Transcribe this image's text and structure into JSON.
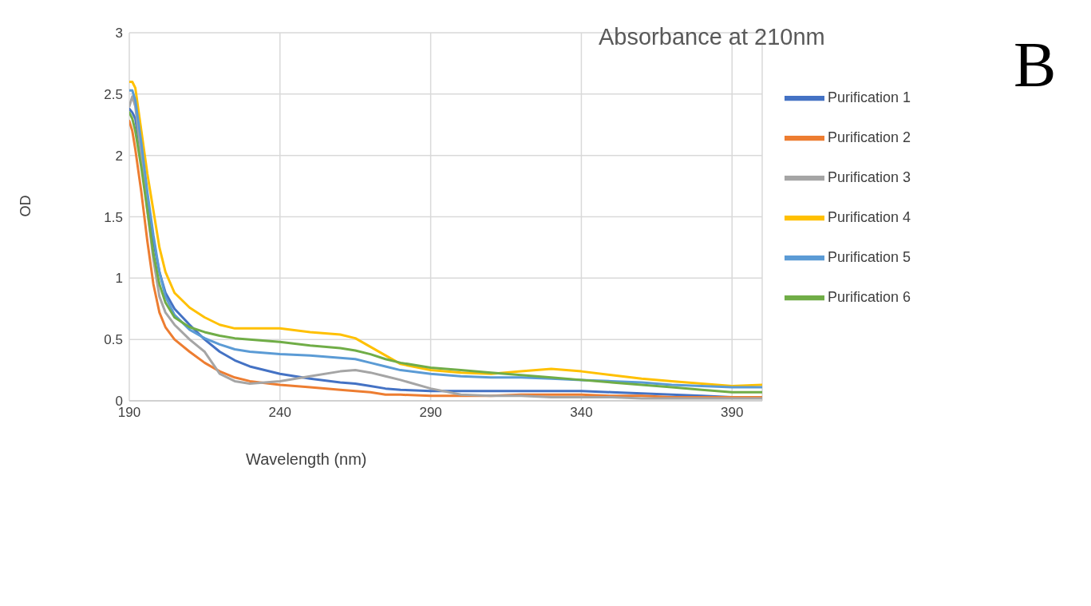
{
  "chart_data": {
    "type": "line",
    "title": "Absorbance at 210nm",
    "xlabel": "Wavelength (nm)",
    "ylabel": "OD",
    "annotations": [
      "B"
    ],
    "x": [
      190,
      191,
      192,
      194,
      196,
      198,
      200,
      202,
      205,
      210,
      215,
      220,
      225,
      230,
      240,
      250,
      260,
      265,
      270,
      275,
      280,
      290,
      300,
      310,
      320,
      330,
      340,
      350,
      360,
      370,
      380,
      390,
      400
    ],
    "series": [
      {
        "name": "Purification 1",
        "color": "#4472c4",
        "values": [
          2.38,
          2.35,
          2.3,
          2.0,
          1.6,
          1.3,
          1.05,
          0.88,
          0.75,
          0.62,
          0.5,
          0.4,
          0.33,
          0.28,
          0.22,
          0.18,
          0.15,
          0.14,
          0.12,
          0.1,
          0.09,
          0.08,
          0.08,
          0.08,
          0.08,
          0.08,
          0.08,
          0.07,
          0.06,
          0.05,
          0.04,
          0.03,
          0.03
        ]
      },
      {
        "name": "Purification 2",
        "color": "#ed7d31",
        "values": [
          2.28,
          2.2,
          2.05,
          1.7,
          1.3,
          0.95,
          0.72,
          0.6,
          0.5,
          0.4,
          0.31,
          0.24,
          0.19,
          0.16,
          0.13,
          0.11,
          0.09,
          0.08,
          0.07,
          0.05,
          0.05,
          0.04,
          0.04,
          0.04,
          0.05,
          0.05,
          0.05,
          0.04,
          0.04,
          0.03,
          0.03,
          0.03,
          0.03
        ]
      },
      {
        "name": "Purification 3",
        "color": "#a5a5a5",
        "values": [
          2.4,
          2.48,
          2.4,
          2.0,
          1.55,
          1.15,
          0.85,
          0.72,
          0.62,
          0.5,
          0.4,
          0.22,
          0.16,
          0.14,
          0.16,
          0.2,
          0.24,
          0.25,
          0.23,
          0.2,
          0.17,
          0.1,
          0.05,
          0.04,
          0.04,
          0.03,
          0.03,
          0.03,
          0.02,
          0.02,
          0.02,
          0.02,
          0.02
        ]
      },
      {
        "name": "Purification 4",
        "color": "#ffc000",
        "values": [
          2.6,
          2.6,
          2.55,
          2.2,
          1.85,
          1.55,
          1.25,
          1.05,
          0.88,
          0.76,
          0.68,
          0.62,
          0.59,
          0.59,
          0.59,
          0.56,
          0.54,
          0.51,
          0.44,
          0.37,
          0.3,
          0.25,
          0.23,
          0.22,
          0.24,
          0.26,
          0.24,
          0.21,
          0.18,
          0.16,
          0.14,
          0.12,
          0.13
        ]
      },
      {
        "name": "Purification 5",
        "color": "#5b9bd5",
        "values": [
          2.53,
          2.53,
          2.45,
          2.1,
          1.7,
          1.35,
          1.05,
          0.85,
          0.7,
          0.58,
          0.51,
          0.46,
          0.42,
          0.4,
          0.38,
          0.37,
          0.35,
          0.34,
          0.31,
          0.28,
          0.25,
          0.22,
          0.2,
          0.19,
          0.19,
          0.18,
          0.17,
          0.16,
          0.15,
          0.13,
          0.12,
          0.11,
          0.11
        ]
      },
      {
        "name": "Purification 6",
        "color": "#70ad47",
        "values": [
          2.35,
          2.3,
          2.2,
          1.9,
          1.55,
          1.2,
          0.95,
          0.8,
          0.68,
          0.6,
          0.56,
          0.53,
          0.51,
          0.5,
          0.48,
          0.45,
          0.43,
          0.41,
          0.38,
          0.34,
          0.31,
          0.27,
          0.25,
          0.23,
          0.21,
          0.19,
          0.17,
          0.15,
          0.13,
          0.11,
          0.09,
          0.07,
          0.07
        ]
      }
    ],
    "xlim": [
      190,
      400
    ],
    "xticks": [
      190,
      240,
      290,
      340,
      390
    ],
    "ylim": [
      0,
      3
    ],
    "yticks": [
      0,
      0.5,
      1,
      1.5,
      2,
      2.5,
      3
    ],
    "grid": true,
    "legend": "right",
    "marker": "none",
    "line_style": "solid"
  }
}
